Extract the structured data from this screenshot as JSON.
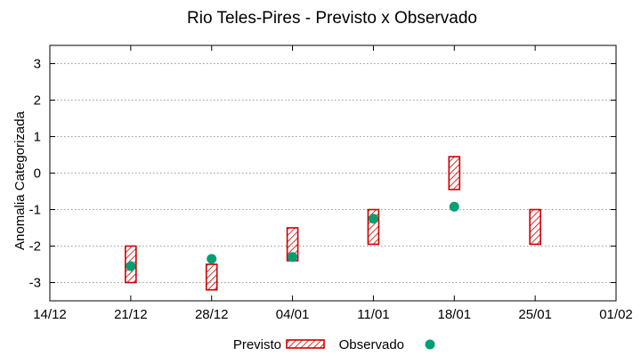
{
  "chart_data": {
    "type": "range",
    "title": "Rio Teles-Pires - Previsto x Observado",
    "xlabel": "",
    "ylabel": "Anomalia Categorizada",
    "ylim": [
      -3.5,
      3.5
    ],
    "yticks": [
      -3,
      -2,
      -1,
      0,
      1,
      2,
      3
    ],
    "xticks": [
      "14/12",
      "21/12",
      "28/12",
      "04/01",
      "11/01",
      "18/01",
      "25/01",
      "01/02"
    ],
    "grid": "horizontal dotted",
    "legend_position": "bottom-center",
    "series": [
      {
        "name": "Previsto",
        "kind": "hatched-range",
        "color": "#cc0000",
        "points": [
          {
            "x": "21/12",
            "low": -3,
            "high": -2
          },
          {
            "x": "28/12",
            "low": -3.2,
            "high": -2.5
          },
          {
            "x": "04/01",
            "low": -2.4,
            "high": -1.5
          },
          {
            "x": "11/01",
            "low": -1.95,
            "high": -1
          },
          {
            "x": "18/01",
            "low": -0.45,
            "high": 0.45
          },
          {
            "x": "25/01",
            "low": -1.95,
            "high": -1
          }
        ]
      },
      {
        "name": "Observado",
        "kind": "point",
        "color": "#009e73",
        "points": [
          {
            "x": "21/12",
            "y": -2.55
          },
          {
            "x": "28/12",
            "y": -2.35
          },
          {
            "x": "04/01",
            "y": -2.3
          },
          {
            "x": "11/01",
            "y": -1.25
          },
          {
            "x": "18/01",
            "y": -0.92
          }
        ]
      }
    ]
  }
}
